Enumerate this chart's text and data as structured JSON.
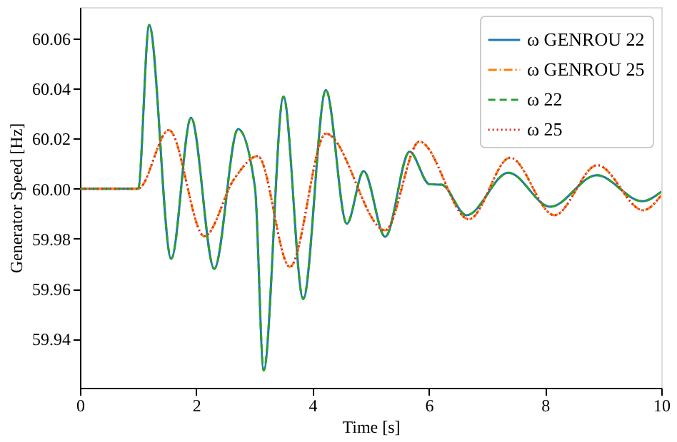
{
  "chart_data": {
    "type": "line",
    "xlabel": "Time [s]",
    "ylabel": "Generator Speed [Hz]",
    "xlim": [
      0,
      10
    ],
    "ylim": [
      59.9205,
      60.0725
    ],
    "xticks": [
      0,
      2,
      4,
      6,
      8,
      10
    ],
    "yticks": [
      {
        "value": 59.94,
        "label": "59.94"
      },
      {
        "value": 59.96,
        "label": "59.96"
      },
      {
        "value": 59.98,
        "label": "59.98"
      },
      {
        "value": 60.0,
        "label": "60.00"
      },
      {
        "value": 60.02,
        "label": "60.02"
      },
      {
        "value": 60.04,
        "label": "60.04"
      },
      {
        "value": 60.06,
        "label": "60.06"
      }
    ],
    "grid": false,
    "legend": "top right",
    "series": [
      {
        "name": "ω GENROU 22",
        "color": "#1f77b4",
        "line_style": "solid",
        "x": [
          0,
          1.0,
          1.19,
          1.57,
          1.91,
          2.31,
          2.72,
          3.01,
          3.16,
          3.5,
          3.84,
          4.23,
          4.59,
          4.88,
          5.25,
          5.67,
          6.01,
          6.22,
          6.65,
          7.37,
          8.09,
          8.89,
          9.67,
          10
        ],
        "values": [
          60.0,
          60.0,
          60.0654,
          59.972,
          60.0284,
          59.968,
          60.0238,
          60.0006,
          59.9274,
          60.0368,
          59.956,
          60.0394,
          59.986,
          60.007,
          59.9808,
          60.0148,
          60.0018,
          60.0016,
          59.9894,
          60.0064,
          59.9928,
          60.0054,
          59.995,
          59.9988
        ]
      },
      {
        "name": "ω GENROU 25",
        "color": "#ff7f0e",
        "line_style": "dashdot",
        "x": [
          0,
          1.0,
          1.53,
          2.14,
          2.65,
          3.06,
          3.61,
          4.23,
          5.25,
          5.84,
          6.69,
          7.4,
          8.16,
          8.9,
          9.69,
          10
        ],
        "values": [
          60.0,
          60.0,
          60.0234,
          59.981,
          60.0038,
          60.013,
          59.9688,
          60.022,
          59.9834,
          60.0188,
          59.9878,
          60.0124,
          59.9894,
          60.0094,
          59.9914,
          59.9974
        ]
      },
      {
        "name": "ω 22",
        "color": "#2ca02c",
        "line_style": "dashed",
        "x": [
          0,
          1.0,
          1.19,
          1.57,
          1.91,
          2.31,
          2.72,
          3.01,
          3.16,
          3.5,
          3.84,
          4.23,
          4.59,
          4.88,
          5.25,
          5.67,
          6.01,
          6.22,
          6.65,
          7.37,
          8.09,
          8.89,
          9.67,
          10
        ],
        "values": [
          60.0,
          60.0,
          60.0654,
          59.972,
          60.0284,
          59.968,
          60.0238,
          60.0006,
          59.9274,
          60.0368,
          59.956,
          60.0394,
          59.986,
          60.007,
          59.9808,
          60.0148,
          60.0018,
          60.0016,
          59.9894,
          60.0064,
          59.9928,
          60.0054,
          59.995,
          59.9988
        ]
      },
      {
        "name": "ω 25",
        "color": "#d62728",
        "line_style": "dotted",
        "x": [
          0,
          1.0,
          1.53,
          2.14,
          2.65,
          3.06,
          3.61,
          4.23,
          5.25,
          5.84,
          6.69,
          7.4,
          8.16,
          8.9,
          9.69,
          10
        ],
        "values": [
          60.0,
          60.0,
          60.0234,
          59.981,
          60.0038,
          60.013,
          59.9688,
          60.022,
          59.9834,
          60.0188,
          59.9878,
          60.0124,
          59.9894,
          60.0094,
          59.9914,
          59.9974
        ]
      }
    ]
  }
}
